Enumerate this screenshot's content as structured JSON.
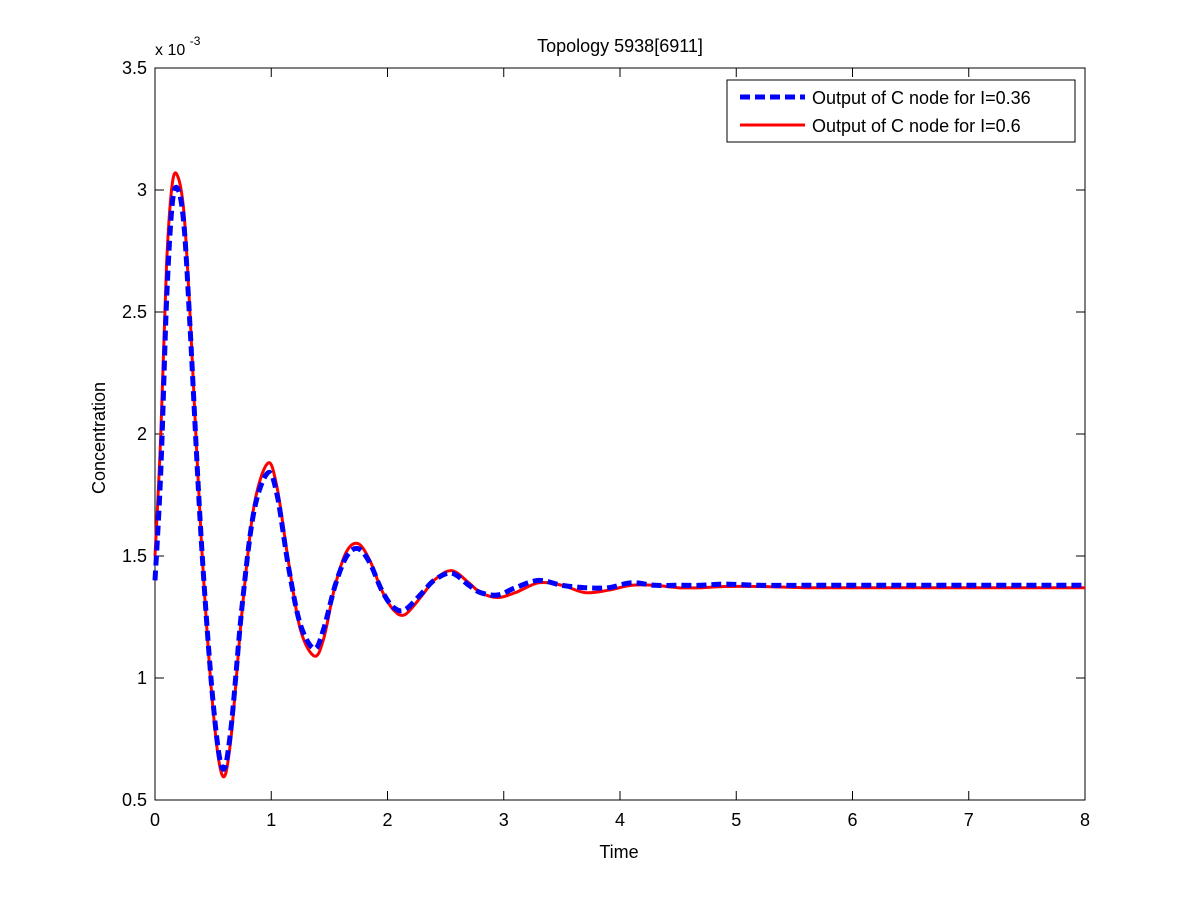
{
  "figure_background": "#ffffff",
  "chart_data": {
    "type": "line",
    "title": "Topology 5938[6911]",
    "xlabel": "Time",
    "ylabel": "Concentration",
    "y_multiplier_base": "x 10",
    "y_multiplier_exp": "-3",
    "xlim": [
      0,
      8
    ],
    "ylim": [
      0.5,
      3.5
    ],
    "xticks": [
      "0",
      "1",
      "2",
      "3",
      "4",
      "5",
      "6",
      "7",
      "8"
    ],
    "yticks": [
      "0.5",
      "1",
      "1.5",
      "2",
      "2.5",
      "3",
      "3.5"
    ],
    "grid": false,
    "legend_position": "top-right",
    "series": [
      {
        "name": "Output of C node for I=0.36",
        "color": "#0000ff",
        "style": "dashed",
        "x": [
          0,
          0.05,
          0.1,
          0.15,
          0.2,
          0.25,
          0.3,
          0.4,
          0.5,
          0.58,
          0.65,
          0.75,
          0.85,
          0.97,
          1.05,
          1.15,
          1.25,
          1.37,
          1.45,
          1.55,
          1.65,
          1.75,
          1.85,
          1.95,
          2.05,
          2.15,
          2.3,
          2.4,
          2.55,
          2.7,
          2.8,
          2.95,
          3.1,
          3.3,
          3.5,
          3.7,
          3.9,
          4.1,
          4.3,
          4.5,
          4.7,
          4.9,
          5.2,
          5.6,
          6,
          7,
          8
        ],
        "values": [
          1.4,
          1.85,
          2.55,
          2.95,
          3.0,
          2.85,
          2.45,
          1.55,
          0.9,
          0.63,
          0.78,
          1.3,
          1.68,
          1.84,
          1.75,
          1.45,
          1.22,
          1.12,
          1.2,
          1.38,
          1.5,
          1.53,
          1.47,
          1.36,
          1.29,
          1.28,
          1.35,
          1.4,
          1.43,
          1.38,
          1.35,
          1.34,
          1.37,
          1.4,
          1.38,
          1.37,
          1.37,
          1.39,
          1.38,
          1.38,
          1.38,
          1.385,
          1.38,
          1.38,
          1.38,
          1.38,
          1.38
        ]
      },
      {
        "name": "Output of C node for I=0.6",
        "color": "#ff0000",
        "style": "solid",
        "x": [
          0,
          0.05,
          0.1,
          0.15,
          0.2,
          0.25,
          0.3,
          0.4,
          0.5,
          0.58,
          0.65,
          0.75,
          0.85,
          0.97,
          1.05,
          1.15,
          1.25,
          1.37,
          1.45,
          1.55,
          1.65,
          1.75,
          1.85,
          1.95,
          2.05,
          2.15,
          2.3,
          2.4,
          2.55,
          2.7,
          2.8,
          2.95,
          3.1,
          3.3,
          3.5,
          3.7,
          3.9,
          4.1,
          4.3,
          4.5,
          4.7,
          4.9,
          5.2,
          5.6,
          6,
          7,
          8
        ],
        "values": [
          1.5,
          2.0,
          2.7,
          3.03,
          3.05,
          2.9,
          2.5,
          1.55,
          0.87,
          0.6,
          0.74,
          1.28,
          1.7,
          1.88,
          1.78,
          1.47,
          1.2,
          1.09,
          1.16,
          1.38,
          1.52,
          1.55,
          1.48,
          1.36,
          1.28,
          1.26,
          1.34,
          1.4,
          1.44,
          1.39,
          1.35,
          1.33,
          1.35,
          1.39,
          1.38,
          1.35,
          1.36,
          1.38,
          1.38,
          1.37,
          1.37,
          1.375,
          1.375,
          1.37,
          1.37,
          1.37,
          1.37
        ]
      }
    ]
  }
}
